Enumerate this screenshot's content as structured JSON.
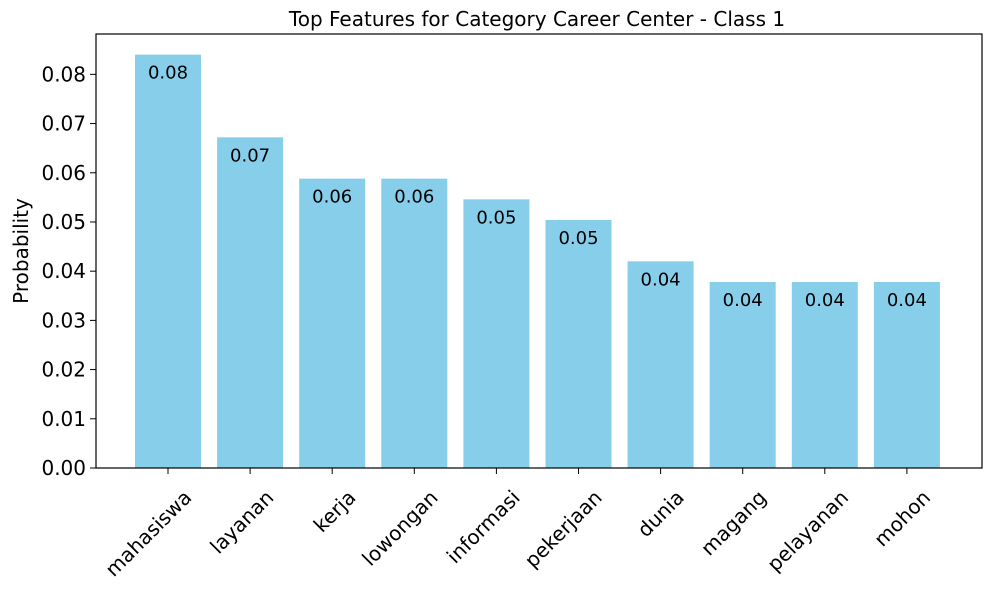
{
  "chart_data": {
    "type": "bar",
    "title": "Top Features for Category Career Center - Class 1",
    "xlabel": "",
    "ylabel": "Probability",
    "categories": [
      "mahasiswa",
      "layanan",
      "kerja",
      "lowongan",
      "informasi",
      "pekerjaan",
      "dunia",
      "magang",
      "pelayanan",
      "mohon"
    ],
    "values": [
      0.084,
      0.0672,
      0.0588,
      0.0588,
      0.0546,
      0.0504,
      0.042,
      0.0378,
      0.0378,
      0.0378
    ],
    "data_labels": [
      "0.08",
      "0.07",
      "0.06",
      "0.06",
      "0.05",
      "0.05",
      "0.04",
      "0.04",
      "0.04",
      "0.04"
    ],
    "ylim": [
      0,
      0.0882
    ],
    "yticks": [
      0.0,
      0.01,
      0.02,
      0.03,
      0.04,
      0.05,
      0.06,
      0.07,
      0.08
    ],
    "ytick_labels": [
      "0.00",
      "0.01",
      "0.02",
      "0.03",
      "0.04",
      "0.05",
      "0.06",
      "0.07",
      "0.08"
    ],
    "grid": false,
    "legend": "none",
    "bar_color": "#87CEEB"
  }
}
